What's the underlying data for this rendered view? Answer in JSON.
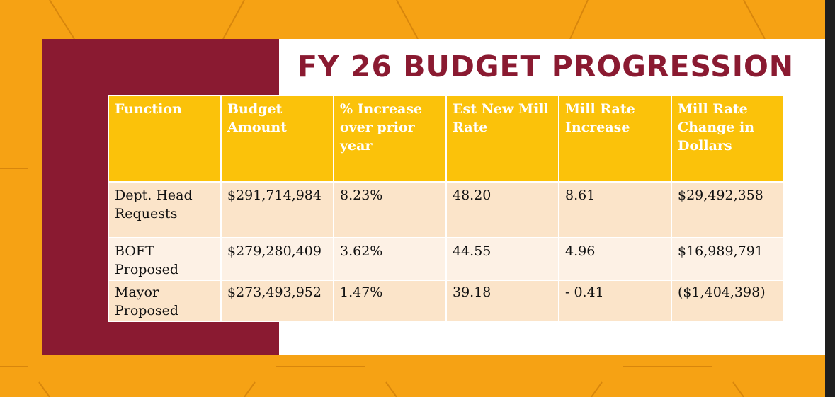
{
  "slide": {
    "title": "FY 26 BUDGET PROGRESSION",
    "colors": {
      "background_orange": "#f6a214",
      "maroon": "#8a1a31",
      "header_yellow": "#fbc20a",
      "row_peach": "#fbe4c9",
      "row_light": "#fdf1e5"
    }
  },
  "table": {
    "headers": [
      "Function",
      "Budget Amount",
      "% Increase over prior year",
      "Est New Mill Rate",
      "Mill Rate Increase",
      "Mill Rate Change in Dollars"
    ],
    "rows": [
      [
        "Dept. Head Requests",
        "$291,714,984",
        "8.23%",
        "48.20",
        "8.61",
        "$29,492,358"
      ],
      [
        "BOFT Proposed",
        "$279,280,409",
        "3.62%",
        "44.55",
        "4.96",
        "$16,989,791"
      ],
      [
        "Mayor Proposed",
        "$273,493,952",
        "1.47%",
        "39.18",
        "- 0.41",
        "($1,404,398)"
      ]
    ]
  }
}
